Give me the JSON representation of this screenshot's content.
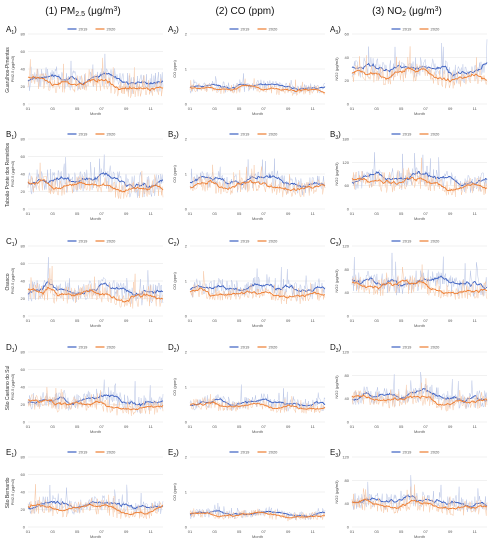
{
  "figure": {
    "column_headers": [
      {
        "main": "(1) PM",
        "sub": "2.5",
        "unit": " (μg/m",
        "sup": "3",
        "close": ")"
      },
      {
        "main": "(2) CO (ppm)",
        "sub": "",
        "unit": "",
        "sup": "",
        "close": ""
      },
      {
        "main": "(3) NO",
        "sub": "2",
        "unit": " (μg/m",
        "sup": "3",
        "close": ")"
      }
    ],
    "row_stations": [
      "Guarulhos-Pimentas",
      "Taboão Ponte dos Remédios",
      "Osasco",
      "São Caetano do Sul",
      "São Bernardo"
    ],
    "row_letters": [
      "A",
      "B",
      "C",
      "D",
      "E"
    ],
    "colors": {
      "series_2019": "#3b5fc0",
      "series_2020": "#ed7d31",
      "raw_2019": "#b9c5e6",
      "raw_2020": "#f7c7a5",
      "grid": "#e3e3e3"
    }
  },
  "chart_data": [
    {
      "id": "A1",
      "type": "line",
      "station": "Guarulhos-Pimentas",
      "pollutant": "PM2.5",
      "ylabel": "PM2.5 (μg/m3)",
      "ylim": [
        0,
        80
      ],
      "yticks": [
        0,
        20,
        40,
        60,
        80
      ],
      "xlabel": "Month",
      "xticks": [
        "01",
        "03",
        "05",
        "07",
        "09",
        "11"
      ],
      "series": [
        {
          "name": "2019",
          "level": 25,
          "amplitude": 9
        },
        {
          "name": "2020",
          "level": 20,
          "amplitude": 8
        }
      ],
      "legend": [
        "2019",
        "2020"
      ]
    },
    {
      "id": "A2",
      "type": "line",
      "station": "Guarulhos-Pimentas",
      "pollutant": "CO",
      "ylabel": "CO (ppm)",
      "ylim": [
        0,
        2
      ],
      "yticks": [
        0,
        1,
        2
      ],
      "xlabel": "Month",
      "xticks": [
        "01",
        "03",
        "05",
        "07",
        "09",
        "11"
      ],
      "series": [
        {
          "name": "2019",
          "level": 0.45,
          "amplitude": 0.12
        },
        {
          "name": "2020",
          "level": 0.4,
          "amplitude": 0.1
        }
      ],
      "legend": [
        "2019",
        "2020"
      ]
    },
    {
      "id": "A3",
      "type": "line",
      "station": "Guarulhos-Pimentas",
      "pollutant": "NO2",
      "ylabel": "NO2 (μg/m3)",
      "ylim": [
        0,
        60
      ],
      "yticks": [
        0,
        20,
        40,
        60
      ],
      "xlabel": "Month",
      "xticks": [
        "01",
        "03",
        "05",
        "07",
        "09",
        "11"
      ],
      "series": [
        {
          "name": "2019",
          "level": 27,
          "amplitude": 7
        },
        {
          "name": "2020",
          "level": 23,
          "amplitude": 6
        }
      ],
      "legend": [
        "2019",
        "2020"
      ]
    },
    {
      "id": "B1",
      "type": "line",
      "station": "Taboão Ponte dos Remédios",
      "pollutant": "PM2.5",
      "ylabel": "PM2.5 (μg/m3)",
      "ylim": [
        0,
        80
      ],
      "yticks": [
        0,
        20,
        40,
        60,
        80
      ],
      "xlabel": "Month",
      "xticks": [
        "01",
        "03",
        "05",
        "07",
        "09",
        "11"
      ],
      "series": [
        {
          "name": "2019",
          "level": 28,
          "amplitude": 10
        },
        {
          "name": "2020",
          "level": 24,
          "amplitude": 8
        }
      ],
      "legend": [
        "2019",
        "2020"
      ]
    },
    {
      "id": "B2",
      "type": "line",
      "station": "Taboão Ponte dos Remédios",
      "pollutant": "CO",
      "ylabel": "CO (ppm)",
      "ylim": [
        0,
        2
      ],
      "yticks": [
        0,
        1,
        2
      ],
      "xlabel": "Month",
      "xticks": [
        "01",
        "03",
        "05",
        "07",
        "09",
        "11"
      ],
      "series": [
        {
          "name": "2019",
          "level": 0.7,
          "amplitude": 0.2
        },
        {
          "name": "2020",
          "level": 0.6,
          "amplitude": 0.18
        }
      ],
      "legend": [
        "2019",
        "2020"
      ]
    },
    {
      "id": "B3",
      "type": "line",
      "station": "Taboão Ponte dos Remédios",
      "pollutant": "NO2",
      "ylabel": "NO2 (μg/m3)",
      "ylim": [
        0,
        180
      ],
      "yticks": [
        0,
        60,
        120,
        180
      ],
      "xlabel": "Month",
      "xticks": [
        "01",
        "03",
        "05",
        "07",
        "09",
        "11"
      ],
      "series": [
        {
          "name": "2019",
          "level": 70,
          "amplitude": 20
        },
        {
          "name": "2020",
          "level": 62,
          "amplitude": 18
        }
      ],
      "legend": [
        "2019",
        "2020"
      ]
    },
    {
      "id": "C1",
      "type": "line",
      "station": "Osasco",
      "pollutant": "PM2.5",
      "ylabel": "PM2.5 (μg/m3)",
      "ylim": [
        0,
        80
      ],
      "yticks": [
        0,
        20,
        40,
        60,
        80
      ],
      "xlabel": "Month",
      "xticks": [
        "01",
        "03",
        "05",
        "07",
        "09",
        "11"
      ],
      "series": [
        {
          "name": "2019",
          "level": 26,
          "amplitude": 9
        },
        {
          "name": "2020",
          "level": 22,
          "amplitude": 8
        }
      ],
      "legend": [
        "2019",
        "2020"
      ]
    },
    {
      "id": "C2",
      "type": "line",
      "station": "Osasco",
      "pollutant": "CO",
      "ylabel": "CO (ppm)",
      "ylim": [
        0,
        2
      ],
      "yticks": [
        0,
        1,
        2
      ],
      "xlabel": "Month",
      "xticks": [
        "01",
        "03",
        "05",
        "07",
        "09",
        "11"
      ],
      "series": [
        {
          "name": "2019",
          "level": 0.75,
          "amplitude": 0.2
        },
        {
          "name": "2020",
          "level": 0.6,
          "amplitude": 0.16
        }
      ],
      "legend": [
        "2019",
        "2020"
      ]
    },
    {
      "id": "C3",
      "type": "line",
      "station": "Osasco",
      "pollutant": "NO2",
      "ylabel": "NO2 (μg/m3)",
      "ylim": [
        0,
        120
      ],
      "yticks": [
        0,
        40,
        80,
        120
      ],
      "xlabel": "Month",
      "xticks": [
        "01",
        "03",
        "05",
        "07",
        "09",
        "11"
      ],
      "series": [
        {
          "name": "2019",
          "level": 52,
          "amplitude": 14
        },
        {
          "name": "2020",
          "level": 46,
          "amplitude": 12
        }
      ],
      "legend": [
        "2019",
        "2020"
      ]
    },
    {
      "id": "D1",
      "type": "line",
      "station": "São Caetano do Sul",
      "pollutant": "PM2.5",
      "ylabel": "PM2.5 (μg/m3)",
      "ylim": [
        0,
        80
      ],
      "yticks": [
        0,
        20,
        40,
        60,
        80
      ],
      "xlabel": "Month",
      "xticks": [
        "01",
        "03",
        "05",
        "07",
        "09",
        "11"
      ],
      "series": [
        {
          "name": "2019",
          "level": 22,
          "amplitude": 8
        },
        {
          "name": "2020",
          "level": 18,
          "amplitude": 7
        }
      ],
      "legend": [
        "2019",
        "2020"
      ]
    },
    {
      "id": "D2",
      "type": "line",
      "station": "São Caetano do Sul",
      "pollutant": "CO",
      "ylabel": "CO (ppm)",
      "ylim": [
        0,
        2
      ],
      "yticks": [
        0,
        1,
        2
      ],
      "xlabel": "Month",
      "xticks": [
        "01",
        "03",
        "05",
        "07",
        "09",
        "11"
      ],
      "series": [
        {
          "name": "2019",
          "level": 0.5,
          "amplitude": 0.15
        },
        {
          "name": "2020",
          "level": 0.42,
          "amplitude": 0.12
        }
      ],
      "legend": [
        "2019",
        "2020"
      ]
    },
    {
      "id": "D3",
      "type": "line",
      "station": "São Caetano do Sul",
      "pollutant": "NO2",
      "ylabel": "NO2 (μg/m3)",
      "ylim": [
        0,
        120
      ],
      "yticks": [
        0,
        40,
        80,
        120
      ],
      "xlabel": "Month",
      "xticks": [
        "01",
        "03",
        "05",
        "07",
        "09",
        "11"
      ],
      "series": [
        {
          "name": "2019",
          "level": 40,
          "amplitude": 12
        },
        {
          "name": "2020",
          "level": 35,
          "amplitude": 10
        }
      ],
      "legend": [
        "2019",
        "2020"
      ]
    },
    {
      "id": "E1",
      "type": "line",
      "station": "São Bernardo",
      "pollutant": "PM2.5",
      "ylabel": "PM2.5 (μg/m3)",
      "ylim": [
        0,
        80
      ],
      "yticks": [
        0,
        20,
        40,
        60,
        80
      ],
      "xlabel": "Month",
      "xticks": [
        "01",
        "03",
        "05",
        "07",
        "09",
        "11"
      ],
      "series": [
        {
          "name": "2019",
          "level": 22,
          "amplitude": 7
        },
        {
          "name": "2020",
          "level": 19,
          "amplitude": 7
        }
      ],
      "legend": [
        "2019",
        "2020"
      ]
    },
    {
      "id": "E2",
      "type": "line",
      "station": "São Bernardo",
      "pollutant": "CO",
      "ylabel": "CO (ppm)",
      "ylim": [
        0,
        2
      ],
      "yticks": [
        0,
        1,
        2
      ],
      "xlabel": "Month",
      "xticks": [
        "01",
        "03",
        "05",
        "07",
        "09",
        "11"
      ],
      "series": [
        {
          "name": "2019",
          "level": 0.35,
          "amplitude": 0.1
        },
        {
          "name": "2020",
          "level": 0.32,
          "amplitude": 0.09
        }
      ],
      "legend": [
        "2019",
        "2020"
      ]
    },
    {
      "id": "E3",
      "type": "line",
      "station": "São Bernardo",
      "pollutant": "NO2",
      "ylabel": "NO2 (μg/m3)",
      "ylim": [
        0,
        120
      ],
      "yticks": [
        0,
        40,
        80,
        120
      ],
      "xlabel": "Month",
      "xticks": [
        "01",
        "03",
        "05",
        "07",
        "09",
        "11"
      ],
      "series": [
        {
          "name": "2019",
          "level": 40,
          "amplitude": 11
        },
        {
          "name": "2020",
          "level": 34,
          "amplitude": 10
        }
      ],
      "legend": [
        "2019",
        "2020"
      ]
    }
  ]
}
